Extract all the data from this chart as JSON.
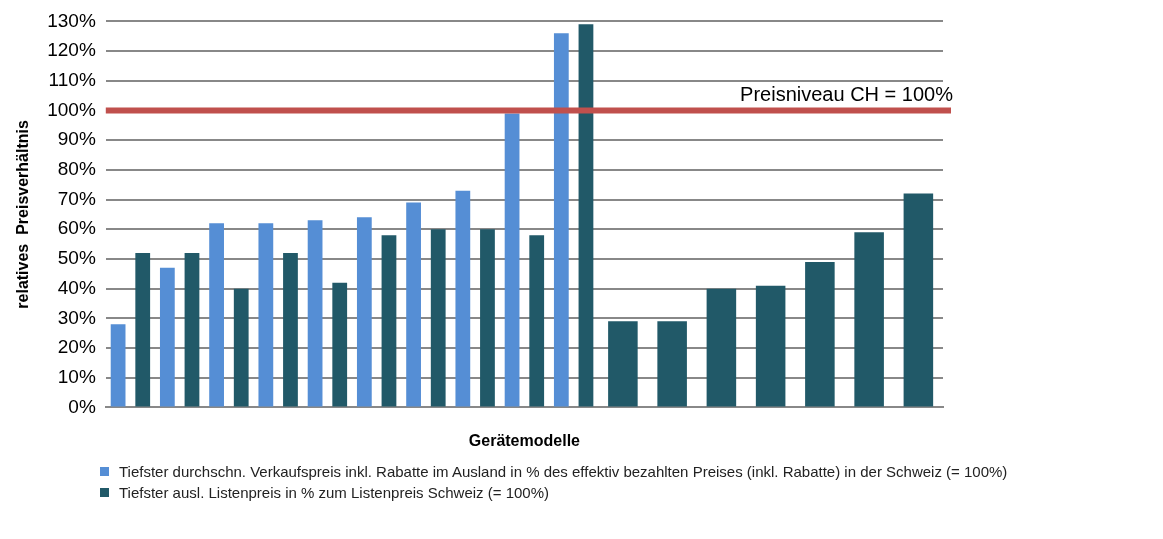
{
  "chart_data": {
    "type": "bar",
    "xlabel": "Gerätemodelle",
    "ylabel": "relatives  Preisverhältnis",
    "categories": [
      null,
      null,
      null,
      null,
      null,
      null,
      null,
      null,
      null,
      null,
      null,
      null,
      null,
      null,
      null,
      null,
      null
    ],
    "series": [
      {
        "name": "Tiefster durchschn. Verkaufspreis inkl. Rabatte im Ausland in % des effektiv bezahlten Preises (inkl. Rabatte) in der Schweiz (= 100%)",
        "color": "#558ed5",
        "values": [
          28,
          47,
          62,
          62,
          63,
          64,
          69,
          73,
          99,
          126,
          null,
          null,
          null,
          null,
          null,
          null,
          null
        ]
      },
      {
        "name": "Tiefster ausl. Listenpreis in % zum Listenpreis Schweiz (= 100%)",
        "color": "#215968",
        "values": [
          52,
          52,
          40,
          52,
          42,
          58,
          60,
          60,
          58,
          129,
          29,
          29,
          40,
          41,
          49,
          59,
          72
        ]
      }
    ],
    "ylim": [
      0,
      130
    ],
    "yticks": [
      {
        "value": 0,
        "label": "0%"
      },
      {
        "value": 10,
        "label": "10%"
      },
      {
        "value": 20,
        "label": "20%"
      },
      {
        "value": 30,
        "label": "30%"
      },
      {
        "value": 40,
        "label": "40%"
      },
      {
        "value": 50,
        "label": "50%"
      },
      {
        "value": 60,
        "label": "60%"
      },
      {
        "value": 70,
        "label": "70%"
      },
      {
        "value": 80,
        "label": "80%"
      },
      {
        "value": 90,
        "label": "90%"
      },
      {
        "value": 100,
        "label": "100%"
      },
      {
        "value": 110,
        "label": "110%"
      },
      {
        "value": 120,
        "label": "120%"
      },
      {
        "value": 130,
        "label": "130%"
      }
    ],
    "grid": "y",
    "legend": "bottom",
    "ref_lines": [
      {
        "axis": "y",
        "value": 100,
        "label": "Preisniveau CH = 100%",
        "color": "#c0504d"
      }
    ]
  }
}
